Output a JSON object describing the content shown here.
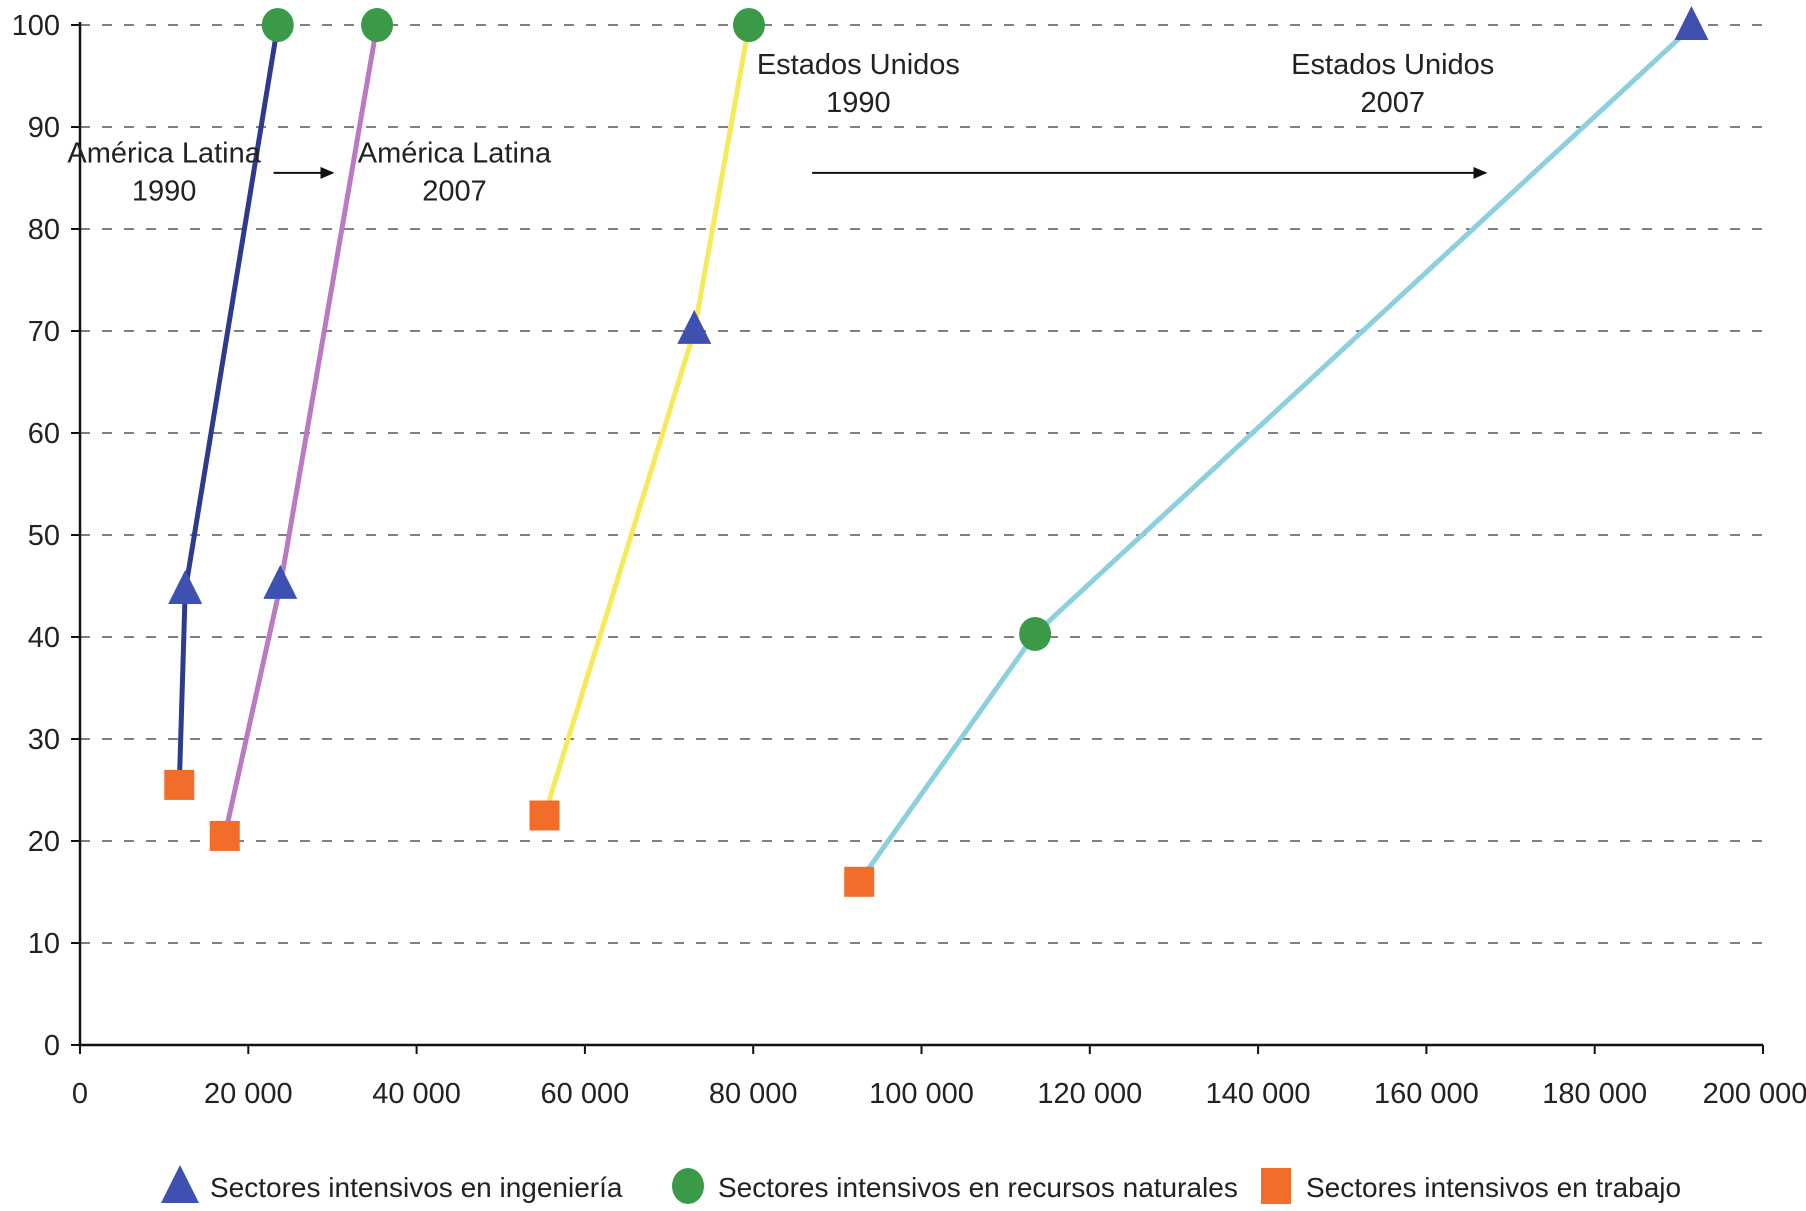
{
  "chart_data": {
    "type": "line",
    "title": "",
    "xlabel": "",
    "ylabel": "",
    "xlim": [
      0,
      200000
    ],
    "ylim": [
      0,
      100
    ],
    "xticks": [
      0,
      20000,
      40000,
      60000,
      80000,
      100000,
      120000,
      140000,
      160000,
      180000,
      200000
    ],
    "x_tick_labels": [
      "0",
      "20 000",
      "40 000",
      "60 000",
      "80 000",
      "100 000",
      "120 000",
      "140 000",
      "160 000",
      "180 000",
      "200 000"
    ],
    "yticks": [
      0,
      10,
      20,
      30,
      40,
      50,
      60,
      70,
      80,
      90,
      100
    ],
    "y_tick_labels": [
      "0",
      "10",
      "20",
      "30",
      "40",
      "50",
      "60",
      "70",
      "80",
      "90",
      "100"
    ],
    "grid": "horizontal dashed",
    "series": [
      {
        "color": "#2e3a8c",
        "points": [
          {
            "x": 11800,
            "y": 25.5,
            "sector": "trabajo"
          },
          {
            "x": 12500,
            "y": 44.5,
            "sector": "ingenieria"
          },
          {
            "x": 23500,
            "y": 100,
            "sector": "recursos"
          }
        ]
      },
      {
        "color": "#b97ac1",
        "points": [
          {
            "x": 17200,
            "y": 20.5,
            "sector": "trabajo"
          },
          {
            "x": 23800,
            "y": 45,
            "sector": "ingenieria"
          },
          {
            "x": 35300,
            "y": 100,
            "sector": "recursos"
          }
        ]
      },
      {
        "color": "#f5ea5a",
        "points": [
          {
            "x": 55200,
            "y": 22.5,
            "sector": "trabajo"
          },
          {
            "x": 73000,
            "y": 70,
            "sector": "ingenieria"
          },
          {
            "x": 79500,
            "y": 100,
            "sector": "recursos"
          }
        ]
      },
      {
        "color": "#8ccfdf",
        "points": [
          {
            "x": 92600,
            "y": 16,
            "sector": "trabajo"
          },
          {
            "x": 113500,
            "y": 40.3,
            "sector": "recursos"
          },
          {
            "x": 191500,
            "y": 99.8,
            "sector": "ingenieria"
          }
        ]
      }
    ],
    "annotations": [
      {
        "id": "al1990",
        "lines": [
          "América Latina",
          "1990"
        ],
        "x": 10000,
        "y": 86.5
      },
      {
        "id": "al2007",
        "lines": [
          "América Latina",
          "2007"
        ],
        "x": 44500,
        "y": 86.5
      },
      {
        "id": "eu1990",
        "lines": [
          "Estados Unidos",
          "1990"
        ],
        "x": 92500,
        "y": 95.2
      },
      {
        "id": "eu2007",
        "lines": [
          "Estados Unidos",
          "2007"
        ],
        "x": 156000,
        "y": 95.2
      }
    ],
    "arrows": [
      {
        "from": [
          23000,
          85.5
        ],
        "to": [
          30000,
          85.5
        ]
      },
      {
        "from": [
          87000,
          85.5
        ],
        "to": [
          167000,
          85.5
        ]
      }
    ],
    "legend": {
      "placement": "bottom",
      "items": [
        {
          "label": "Sectores intensivos en ingeniería",
          "marker": "triangle",
          "color": "#3f51b0"
        },
        {
          "label": "Sectores intensivos en recursos naturales",
          "marker": "circle",
          "color": "#3a9a48"
        },
        {
          "label": "Sectores intensivos en trabajo",
          "marker": "square",
          "color": "#f26c2a"
        }
      ]
    },
    "marker_colors": {
      "ingenieria": "#3f51b0",
      "recursos": "#3a9a48",
      "trabajo": "#f26c2a"
    }
  }
}
